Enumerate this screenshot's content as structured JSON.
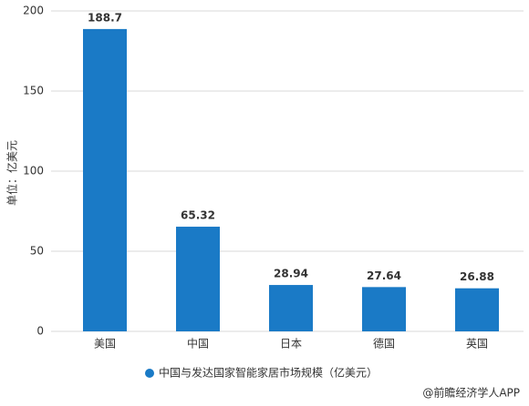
{
  "chart_data": {
    "type": "bar",
    "y_axis_label": "单位：亿美元",
    "categories": [
      "美国",
      "中国",
      "日本",
      "德国",
      "英国"
    ],
    "series": [
      {
        "name": "中国与发达国家智能家居市场规模（亿美元）",
        "color": "#1a7ac6",
        "values": [
          188.7,
          65.32,
          28.94,
          27.64,
          26.88
        ]
      }
    ],
    "ylim": [
      0,
      200
    ],
    "yticks": [
      0,
      50,
      100,
      150,
      200
    ],
    "grid": true,
    "legend": "bottom",
    "source": "@前瞻经济学人APP"
  }
}
